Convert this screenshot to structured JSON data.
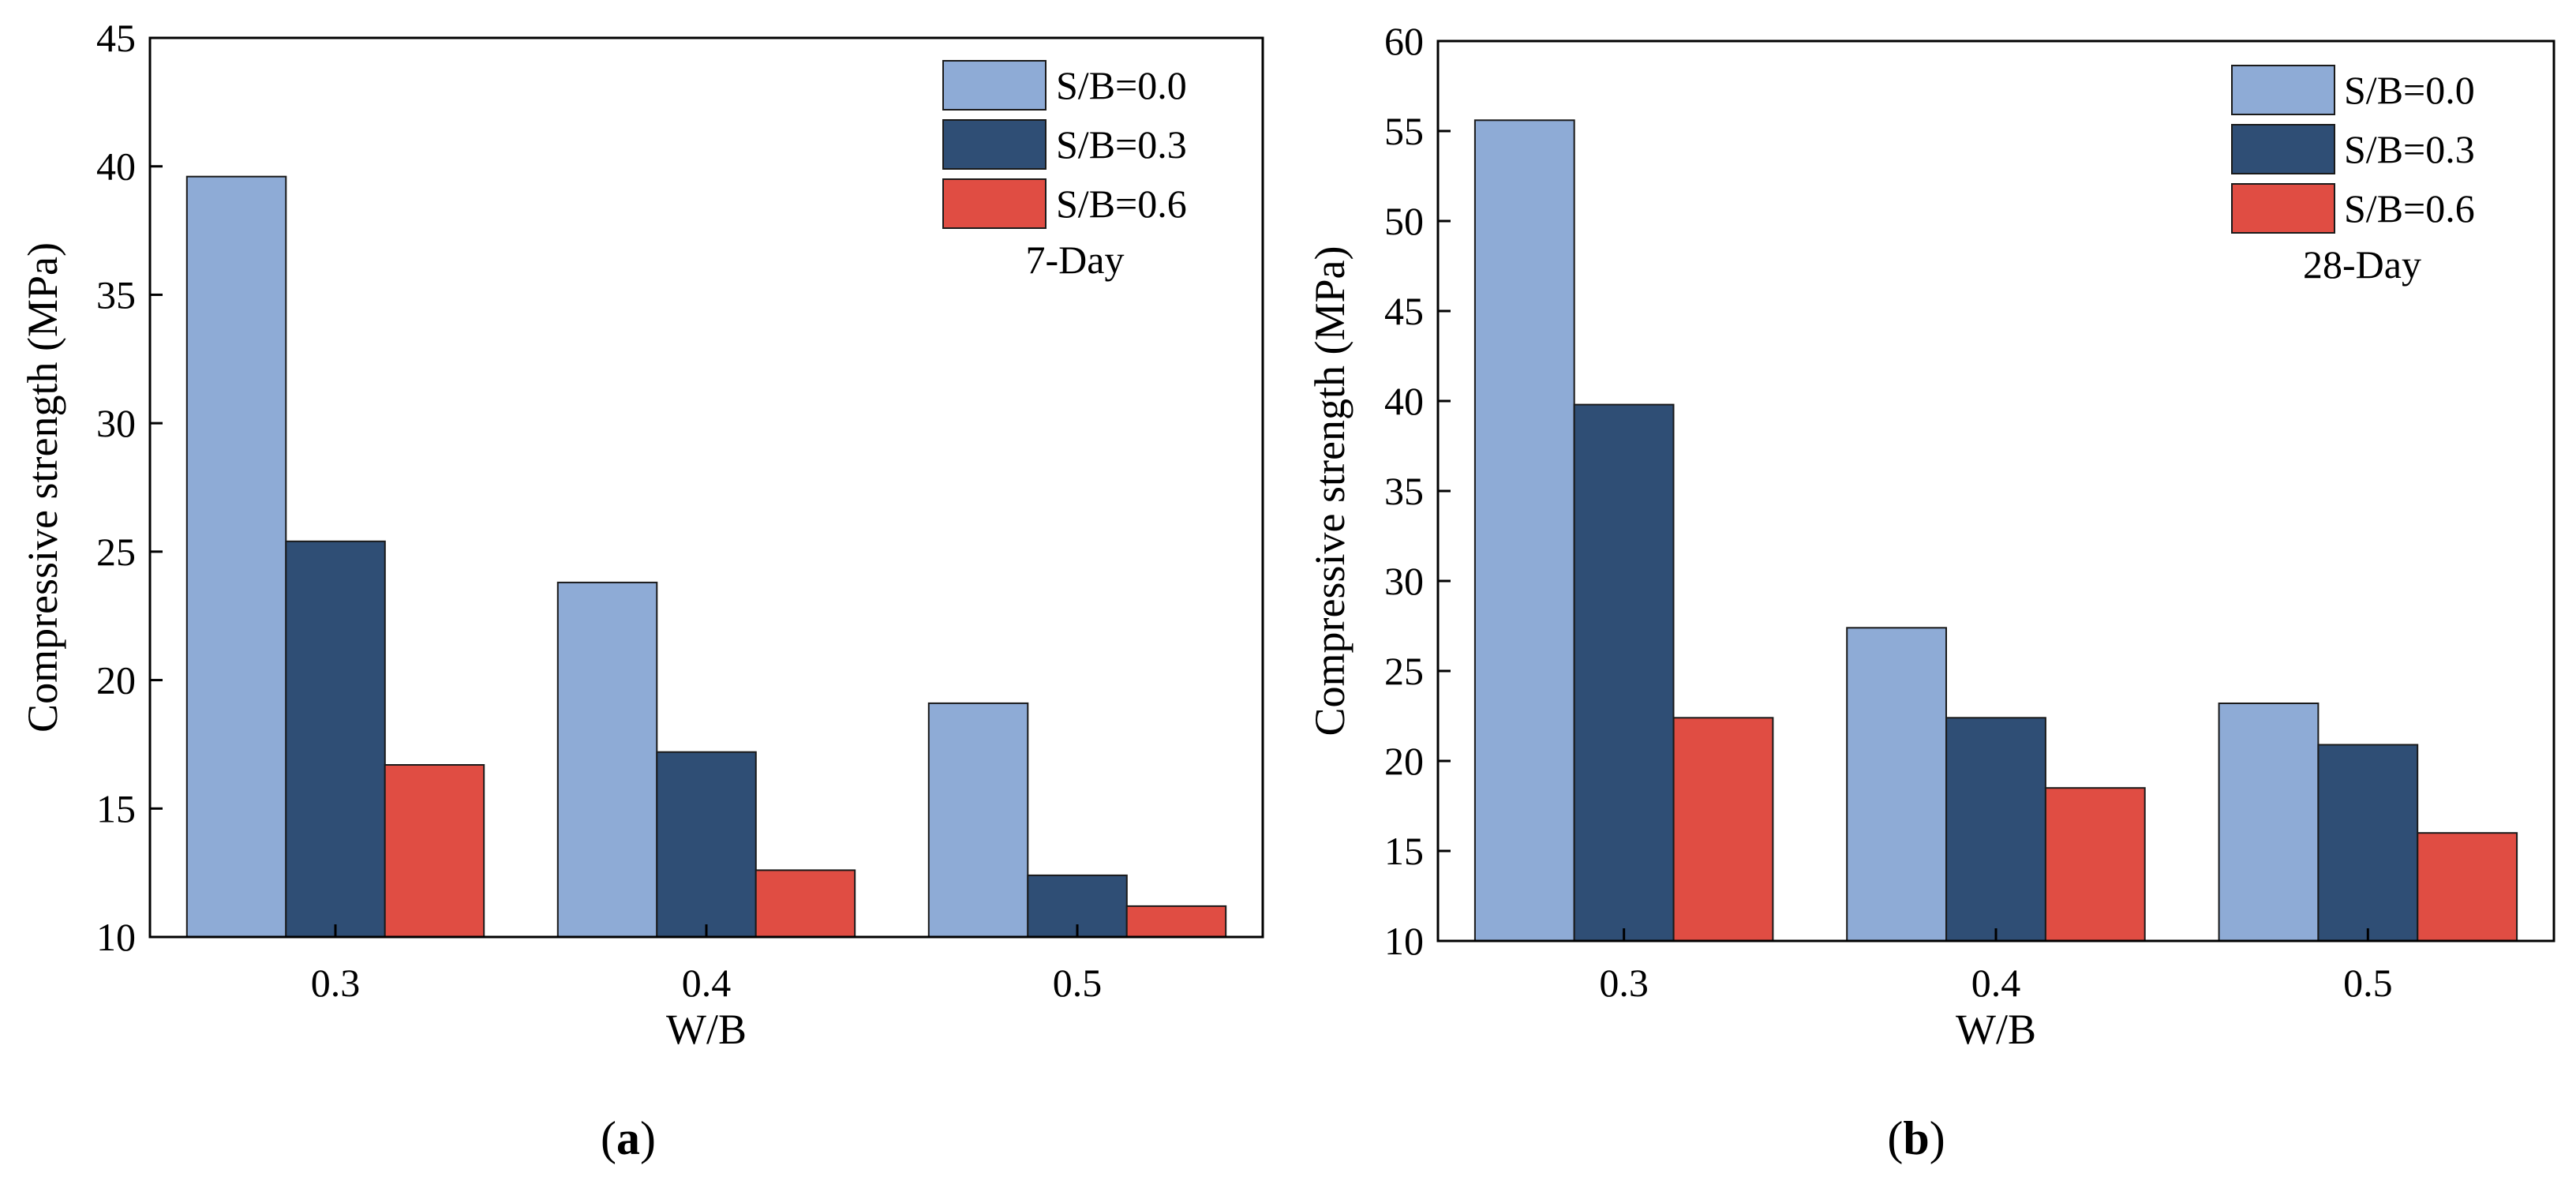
{
  "chart_data": [
    {
      "type": "bar",
      "panel": "(a)",
      "annotation": "7-Day",
      "xlabel": "W/B",
      "ylabel": "Compressive strength (MPa)",
      "categories": [
        "0.3",
        "0.4",
        "0.5"
      ],
      "ylim": [
        10,
        45
      ],
      "yticks": [
        10,
        15,
        20,
        25,
        30,
        35,
        40,
        45
      ],
      "series": [
        {
          "name": "S/B=0.0",
          "values": [
            39.6,
            23.8,
            19.1
          ]
        },
        {
          "name": "S/B=0.3",
          "values": [
            25.4,
            17.2,
            12.4
          ]
        },
        {
          "name": "S/B=0.6",
          "values": [
            16.7,
            12.6,
            11.2
          ]
        }
      ],
      "legend_position": "top-right",
      "grid": false
    },
    {
      "type": "bar",
      "panel": "(b)",
      "annotation": "28-Day",
      "xlabel": "W/B",
      "ylabel": "Compressive strength (MPa)",
      "categories": [
        "0.3",
        "0.4",
        "0.5"
      ],
      "ylim": [
        10,
        60
      ],
      "yticks": [
        10,
        15,
        20,
        25,
        30,
        35,
        40,
        45,
        50,
        55,
        60
      ],
      "series": [
        {
          "name": "S/B=0.0",
          "values": [
            55.6,
            27.4,
            23.2
          ]
        },
        {
          "name": "S/B=0.3",
          "values": [
            39.8,
            22.4,
            20.9
          ]
        },
        {
          "name": "S/B=0.6",
          "values": [
            22.4,
            18.5,
            16.0
          ]
        }
      ],
      "legend_position": "top-right",
      "grid": false
    }
  ],
  "colors": {
    "series": [
      "#8eabd6",
      "#2f4e75",
      "#e04d43"
    ],
    "axis": "#000000",
    "bar_edge": "#1a1a1a"
  }
}
